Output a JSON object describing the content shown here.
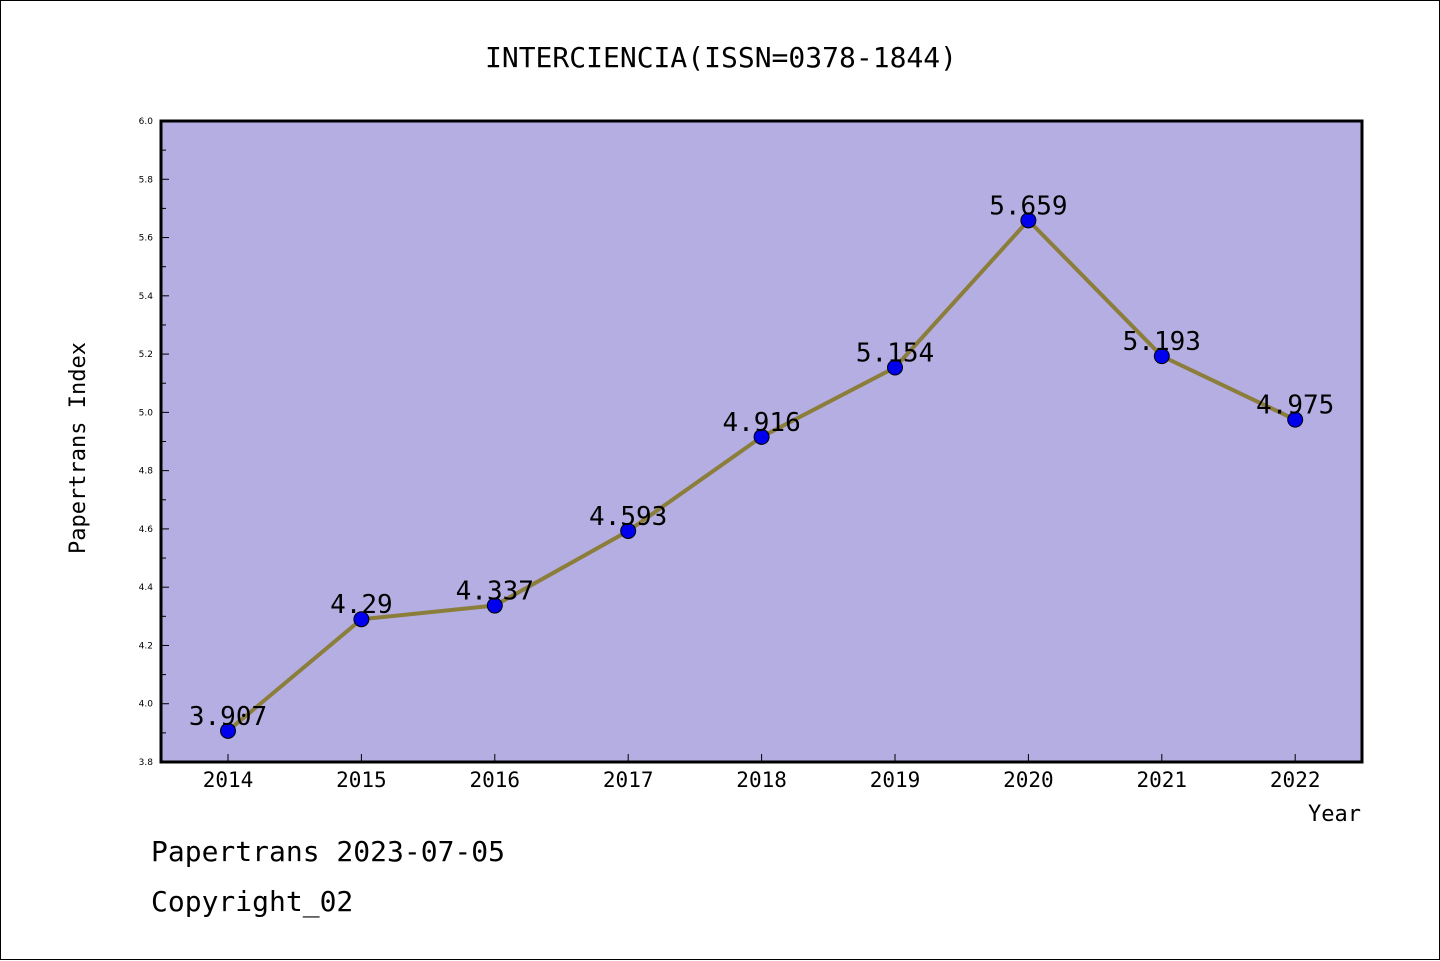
{
  "chart_data": {
    "type": "line",
    "title": "INTERCIENCIA(ISSN=0378-1844)",
    "xlabel": "Year",
    "ylabel": "Papertrans Index",
    "categories": [
      "2014",
      "2015",
      "2016",
      "2017",
      "2018",
      "2019",
      "2020",
      "2021",
      "2022"
    ],
    "series": [
      {
        "values": [
          3.907,
          4.29,
          4.337,
          4.593,
          4.916,
          5.154,
          5.659,
          5.193,
          4.975
        ],
        "labels": [
          "3.907",
          "4.29",
          "4.337",
          "4.593",
          "4.916",
          "5.154",
          "5.659",
          "5.193",
          "4.975"
        ]
      }
    ],
    "ylim": [
      3.8,
      6.0
    ],
    "yticks": [
      "3.8",
      "4.0",
      "4.2",
      "4.4",
      "4.6",
      "4.8",
      "5.0",
      "5.2",
      "5.4",
      "5.6",
      "5.8",
      "6.0"
    ],
    "grid": false,
    "colors": {
      "plot_background": "#b5aee2",
      "line": "#8b7d3a",
      "marker": "#0000ee"
    }
  },
  "footer": {
    "line1": "Papertrans 2023-07-05",
    "line2": "Copyright_02"
  }
}
